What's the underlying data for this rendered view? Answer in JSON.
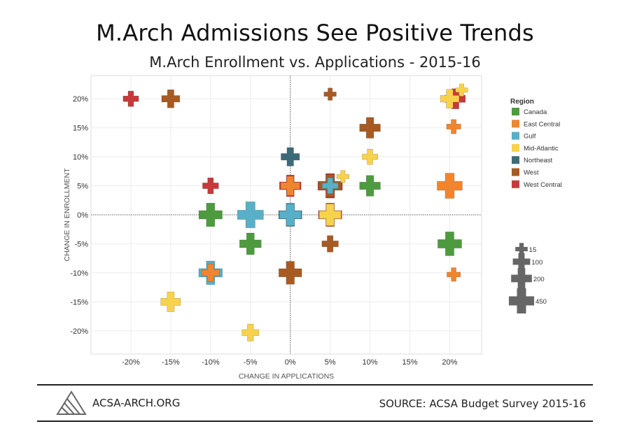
{
  "header": {
    "title": "M.Arch Admissions See Positive Trends",
    "subtitle": "M.Arch Enrollment vs. Applications - 2015-16"
  },
  "footer": {
    "site": "ACSA-ARCH.ORG",
    "source": "SOURCE: ACSA Budget Survey 2015-16",
    "logo_icon": "acsa-logo-icon"
  },
  "colors": {
    "Canada": "#4e9a3f",
    "East Central": "#f08530",
    "Gulf": "#57b0c8",
    "Mid-Atlantic": "#f7d24d",
    "Northeast": "#3d6a78",
    "West": "#a85a23",
    "West Central": "#c9383a",
    "size_legend": "#666666"
  },
  "chart_data": {
    "type": "scatter",
    "xlabel": "CHANGE IN APPLICATIONS",
    "ylabel": "CHANGE IN ENROLLMENT",
    "xlim": [
      -0.25,
      0.24
    ],
    "ylim": [
      -0.24,
      0.24
    ],
    "x_ticks": [
      -0.2,
      -0.15,
      -0.1,
      -0.05,
      0,
      0.05,
      0.1,
      0.15,
      0.2
    ],
    "x_tick_labels": [
      "-20%",
      "-15%",
      "-10%",
      "-5%",
      "0%",
      "5%",
      "10%",
      "15%",
      "20%"
    ],
    "y_ticks": [
      0.2,
      0.15,
      0.1,
      0.05,
      0,
      -0.05,
      -0.1,
      -0.15,
      -0.2
    ],
    "y_tick_labels": [
      "20%",
      "15%",
      "10%",
      "5%",
      "0%",
      "-5%",
      "-10%",
      "-15%",
      "-20%"
    ],
    "legend_title": "Region",
    "regions": [
      "Canada",
      "East Central",
      "Gulf",
      "Mid-Atlantic",
      "Northeast",
      "West",
      "West Central"
    ],
    "size_legend_title": "",
    "size_legend": [
      15,
      100,
      200,
      450
    ],
    "points": [
      {
        "region": "West Central",
        "x": -0.2,
        "y": 0.2,
        "size": 60
      },
      {
        "region": "West",
        "x": -0.15,
        "y": 0.2,
        "size": 120
      },
      {
        "region": "West",
        "x": 0.05,
        "y": 0.208,
        "size": 15
      },
      {
        "region": "West Central",
        "x": 0.207,
        "y": 0.2,
        "size": 180
      },
      {
        "region": "Mid-Atlantic",
        "x": 0.2,
        "y": 0.2,
        "size": 140
      },
      {
        "region": "Mid-Atlantic",
        "x": 0.215,
        "y": 0.215,
        "size": 15
      },
      {
        "region": "West",
        "x": 0.1,
        "y": 0.15,
        "size": 200
      },
      {
        "region": "East Central",
        "x": 0.205,
        "y": 0.152,
        "size": 40
      },
      {
        "region": "Northeast",
        "x": 0,
        "y": 0.1,
        "size": 130
      },
      {
        "region": "Mid-Atlantic",
        "x": 0.1,
        "y": 0.1,
        "size": 60
      },
      {
        "region": "West Central",
        "x": -0.1,
        "y": 0.05,
        "size": 70
      },
      {
        "region": "West Central",
        "x": 0,
        "y": 0.05,
        "size": 230
      },
      {
        "region": "East Central",
        "x": 0,
        "y": 0.05,
        "size": 150
      },
      {
        "region": "West Central",
        "x": 0.05,
        "y": 0.05,
        "size": 350
      },
      {
        "region": "West",
        "x": 0.05,
        "y": 0.05,
        "size": 270
      },
      {
        "region": "Gulf",
        "x": 0.05,
        "y": 0.05,
        "size": 70
      },
      {
        "region": "Mid-Atlantic",
        "x": 0.066,
        "y": 0.066,
        "size": 15
      },
      {
        "region": "Canada",
        "x": 0.1,
        "y": 0.05,
        "size": 200
      },
      {
        "region": "East Central",
        "x": 0.2,
        "y": 0.05,
        "size": 380
      },
      {
        "region": "Canada",
        "x": -0.1,
        "y": 0,
        "size": 300
      },
      {
        "region": "Gulf",
        "x": -0.05,
        "y": 0,
        "size": 420
      },
      {
        "region": "Northeast",
        "x": 0,
        "y": 0,
        "size": 290
      },
      {
        "region": "Gulf",
        "x": 0,
        "y": 0,
        "size": 240
      },
      {
        "region": "West Central",
        "x": 0.05,
        "y": 0,
        "size": 300
      },
      {
        "region": "Mid-Atlantic",
        "x": 0.05,
        "y": 0,
        "size": 240
      },
      {
        "region": "Canada",
        "x": -0.05,
        "y": -0.05,
        "size": 230
      },
      {
        "region": "West",
        "x": 0.05,
        "y": -0.05,
        "size": 80
      },
      {
        "region": "Canada",
        "x": 0.2,
        "y": -0.05,
        "size": 320
      },
      {
        "region": "Gulf",
        "x": -0.1,
        "y": -0.1,
        "size": 310
      },
      {
        "region": "East Central",
        "x": -0.1,
        "y": -0.1,
        "size": 110
      },
      {
        "region": "West",
        "x": 0,
        "y": -0.1,
        "size": 280
      },
      {
        "region": "East Central",
        "x": 0.205,
        "y": -0.103,
        "size": 30
      },
      {
        "region": "Mid-Atlantic",
        "x": -0.15,
        "y": -0.15,
        "size": 170
      },
      {
        "region": "Mid-Atlantic",
        "x": -0.05,
        "y": -0.203,
        "size": 90
      }
    ]
  }
}
